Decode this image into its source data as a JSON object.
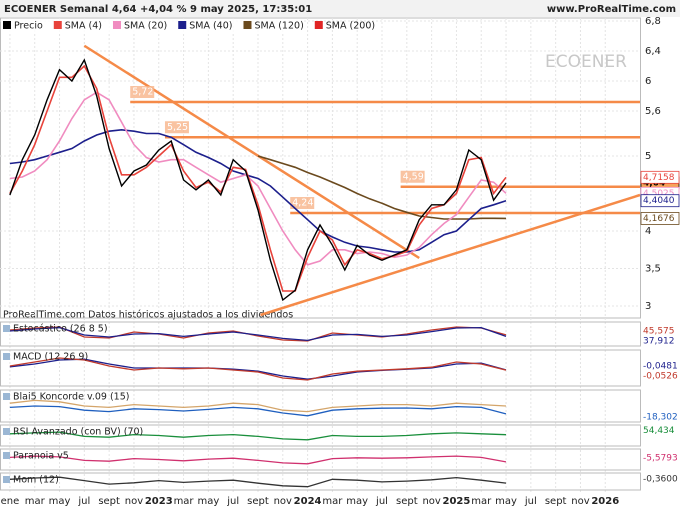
{
  "header": {
    "title": "ECOENER Semanal 4,64 +4,04 % 9 may 2025, 17:35:01",
    "site": "www.ProRealTime.com"
  },
  "chart_data": {
    "type": "line",
    "watermark": "ECOENER",
    "note": "ProRealTime.com Datos históricos ajustados a los dividendos",
    "xlim": [
      -0.8,
      50.8
    ],
    "xticks": [
      {
        "value": 0,
        "label": "ene"
      },
      {
        "value": 2,
        "label": "mar"
      },
      {
        "value": 4,
        "label": "may"
      },
      {
        "value": 6,
        "label": "jul"
      },
      {
        "value": 8,
        "label": "sept"
      },
      {
        "value": 10,
        "label": "nov"
      },
      {
        "value": 12,
        "label": "2023"
      },
      {
        "value": 14,
        "label": "mar"
      },
      {
        "value": 16,
        "label": "may"
      },
      {
        "value": 18,
        "label": "jul"
      },
      {
        "value": 20,
        "label": "sept"
      },
      {
        "value": 22,
        "label": "nov"
      },
      {
        "value": 24,
        "label": "2024"
      },
      {
        "value": 26,
        "label": "mar"
      },
      {
        "value": 28,
        "label": "may"
      },
      {
        "value": 30,
        "label": "jul"
      },
      {
        "value": 32,
        "label": "sept"
      },
      {
        "value": 34,
        "label": "nov"
      },
      {
        "value": 36,
        "label": "2025"
      },
      {
        "value": 38,
        "label": "mar"
      },
      {
        "value": 40,
        "label": "may"
      },
      {
        "value": 42,
        "label": "jul"
      },
      {
        "value": 44,
        "label": "sept"
      },
      {
        "value": 46,
        "label": "nov"
      },
      {
        "value": 48,
        "label": "2026"
      }
    ],
    "ylim": [
      2.84,
      6.84
    ],
    "yticks": [
      {
        "value": 3,
        "label": "3"
      },
      {
        "value": 3.5,
        "label": "3,5"
      },
      {
        "value": 4,
        "label": "4"
      },
      {
        "value": 5,
        "label": "5"
      },
      {
        "value": 5.6,
        "label": "5,6"
      },
      {
        "value": 6,
        "label": "6"
      },
      {
        "value": 6.4,
        "label": "6,4"
      },
      {
        "value": 6.8,
        "label": "6,8"
      }
    ],
    "series": [
      {
        "name": "Precio",
        "color": "#000000",
        "last_label": "4,64",
        "values": [
          4.48,
          4.95,
          5.28,
          5.75,
          6.15,
          6.0,
          6.28,
          5.8,
          5.1,
          4.6,
          4.8,
          4.88,
          5.08,
          5.2,
          4.68,
          4.55,
          4.68,
          4.48,
          4.95,
          4.8,
          4.28,
          3.61,
          3.08,
          3.21,
          3.75,
          4.08,
          3.81,
          3.48,
          3.81,
          3.68,
          3.61,
          3.68,
          3.75,
          4.15,
          4.35,
          4.35,
          4.55,
          5.08,
          4.95,
          4.41,
          4.64
        ]
      },
      {
        "name": "SMA (4)",
        "color": "#e8433b",
        "last_label": "4,7158",
        "values": [
          4.5,
          4.8,
          5.15,
          5.6,
          6.05,
          6.05,
          6.2,
          5.9,
          5.25,
          4.75,
          4.75,
          4.85,
          5.0,
          5.15,
          4.8,
          4.58,
          4.65,
          4.52,
          4.85,
          4.82,
          4.35,
          3.75,
          3.2,
          3.2,
          3.65,
          4.0,
          3.88,
          3.55,
          3.75,
          3.7,
          3.63,
          3.67,
          3.73,
          4.08,
          4.3,
          4.35,
          4.5,
          4.95,
          4.98,
          4.5,
          4.7158
        ]
      },
      {
        "name": "SMA (20)",
        "color": "#f08cc0",
        "last_label": "4,5025",
        "values": [
          4.7,
          4.72,
          4.8,
          4.95,
          5.2,
          5.5,
          5.75,
          5.85,
          5.75,
          5.45,
          5.15,
          4.98,
          4.92,
          4.95,
          4.95,
          4.85,
          4.75,
          4.65,
          4.7,
          4.75,
          4.6,
          4.3,
          4.0,
          3.75,
          3.55,
          3.6,
          3.75,
          3.75,
          3.7,
          3.72,
          3.7,
          3.65,
          3.68,
          3.78,
          3.95,
          4.1,
          4.22,
          4.45,
          4.68,
          4.65,
          4.5025
        ]
      },
      {
        "name": "SMA (40)",
        "color": "#1c1f8c",
        "last_label": "4,4040",
        "values": [
          4.9,
          4.92,
          4.95,
          5.0,
          5.05,
          5.1,
          5.2,
          5.28,
          5.33,
          5.35,
          5.33,
          5.3,
          5.3,
          5.25,
          5.15,
          5.05,
          4.98,
          4.9,
          4.8,
          4.75,
          4.7,
          4.6,
          4.45,
          4.3,
          4.15,
          4.0,
          3.92,
          3.85,
          3.8,
          3.78,
          3.75,
          3.72,
          3.72,
          3.75,
          3.85,
          3.95,
          4.0,
          4.15,
          4.3,
          4.35,
          4.404
        ]
      },
      {
        "name": "SMA (120)",
        "color": "#6b4a1e",
        "last_label": "4,1676",
        "values": [
          null,
          null,
          null,
          null,
          null,
          null,
          null,
          null,
          null,
          null,
          null,
          null,
          null,
          null,
          null,
          null,
          null,
          null,
          null,
          null,
          5.0,
          4.95,
          4.9,
          4.85,
          4.78,
          4.72,
          4.65,
          4.58,
          4.5,
          4.43,
          4.37,
          4.3,
          4.25,
          4.2,
          4.18,
          4.16,
          4.16,
          4.16,
          4.17,
          4.17,
          4.1676
        ]
      },
      {
        "name": "SMA (200)",
        "color": "#e02424"
      }
    ],
    "levels": [
      {
        "value": 5.72,
        "label": "5,72",
        "from": 9.7
      },
      {
        "value": 5.25,
        "label": "5,25",
        "from": 12.5
      },
      {
        "value": 4.59,
        "label": "4,59",
        "from": 31.5
      },
      {
        "value": 4.24,
        "label": "4,24",
        "from": 22.6
      }
    ],
    "trendlines": [
      {
        "from": [
          6,
          6.47
        ],
        "to": [
          33,
          3.64
        ]
      },
      {
        "from": [
          20.2,
          2.88
        ],
        "to": [
          50.8,
          4.48
        ]
      }
    ]
  },
  "indicators": [
    {
      "title": "Estocástico (26 8 5)",
      "ylim": [
        0,
        100
      ],
      "lines": [
        {
          "color": "#c0392b",
          "last_label": "45,575",
          "values": [
            70,
            80,
            85,
            35,
            30,
            60,
            50,
            30,
            55,
            65,
            40,
            20,
            15,
            55,
            45,
            35,
            50,
            70,
            85,
            80,
            45.575
          ]
        },
        {
          "color": "#1c1f8c",
          "last_label": "37,912",
          "values": [
            65,
            75,
            82,
            45,
            35,
            50,
            52,
            38,
            50,
            60,
            45,
            28,
            18,
            45,
            48,
            38,
            45,
            62,
            80,
            82,
            37.912
          ]
        }
      ]
    },
    {
      "title": "MACD (12 26 9)",
      "ylim": [
        -0.4,
        0.4
      ],
      "lines": [
        {
          "color": "#1c1f8c",
          "last_label": "-0,0481",
          "values": [
            0.03,
            0.1,
            0.2,
            0.22,
            0.1,
            0,
            0,
            0,
            0,
            -0.03,
            -0.08,
            -0.2,
            -0.28,
            -0.2,
            -0.1,
            -0.06,
            -0.03,
            0,
            0.1,
            0.12,
            -0.0481
          ]
        },
        {
          "color": "#c0392b",
          "last_label": "-0,0526",
          "values": [
            0.05,
            0.15,
            0.25,
            0.2,
            0.05,
            -0.05,
            0,
            -0.02,
            0,
            -0.05,
            -0.1,
            -0.25,
            -0.3,
            -0.15,
            -0.08,
            -0.05,
            -0.02,
            0.02,
            0.15,
            0.1,
            -0.0526
          ]
        }
      ]
    },
    {
      "title": "Blai5 Koncorde v.09 (15)",
      "ylim": [
        -40,
        60
      ],
      "lines": [
        {
          "color": "#d4a56a",
          "values": [
            20,
            30,
            25,
            10,
            5,
            15,
            10,
            5,
            10,
            20,
            15,
            -5,
            -10,
            5,
            10,
            15,
            15,
            10,
            20,
            15,
            10
          ]
        },
        {
          "color": "#1f5fbf",
          "last_label": "-18,302",
          "values": [
            5,
            10,
            8,
            -5,
            -10,
            0,
            -3,
            -8,
            -2,
            5,
            0,
            -15,
            -25,
            -5,
            0,
            2,
            3,
            0,
            8,
            5,
            -18.302
          ]
        }
      ]
    },
    {
      "title": "RSI Avanzado (con BV) (70)",
      "ylim": [
        0,
        100
      ],
      "lines": [
        {
          "color": "#1a8f3c",
          "last_label": "54,434",
          "values": [
            60,
            65,
            70,
            45,
            40,
            55,
            50,
            40,
            50,
            55,
            45,
            30,
            25,
            50,
            45,
            45,
            50,
            60,
            65,
            60,
            54.434
          ]
        }
      ]
    },
    {
      "title": "Paranoia v5",
      "ylim": [
        -20,
        20
      ],
      "lines": [
        {
          "color": "#d0306e",
          "last_label": "-5,5793",
          "values": [
            5,
            8,
            6,
            -2,
            -4,
            2,
            0,
            -3,
            1,
            3,
            -2,
            -8,
            -10,
            2,
            4,
            3,
            4,
            6,
            8,
            5,
            -5.5793
          ]
        }
      ]
    },
    {
      "title": "Mom (12)",
      "ylim": [
        -1.5,
        1.5
      ],
      "lines": [
        {
          "color": "#333333",
          "last_label": "-0,3600",
          "values": [
            0.5,
            0.8,
            1.0,
            0.2,
            -0.6,
            -0.3,
            0.2,
            -0.2,
            0.1,
            0.3,
            -0.4,
            -1.0,
            -1.2,
            0.5,
            0.3,
            -0.1,
            0.1,
            0.4,
            0.9,
            0.3,
            -0.36
          ]
        }
      ]
    }
  ]
}
